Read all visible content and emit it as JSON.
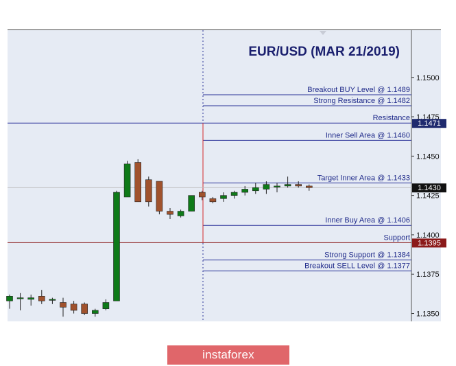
{
  "chart_data": {
    "type": "candlestick",
    "title": "EUR/USD (MAR 21/2019)",
    "ylim": [
      1.1345,
      1.153
    ],
    "y_ticks": [
      "1.1500",
      "1.1475",
      "1.1450",
      "1.1425",
      "1.1400",
      "1.1375",
      "1.1350"
    ],
    "current_price_label": "1.1430",
    "candles": [
      {
        "open": 1.1358,
        "high": 1.1362,
        "low": 1.1353,
        "close": 1.1361
      },
      {
        "open": 1.136,
        "high": 1.1363,
        "low": 1.1352,
        "close": 1.136
      },
      {
        "open": 1.1359,
        "high": 1.1362,
        "low": 1.1355,
        "close": 1.136
      },
      {
        "open": 1.1361,
        "high": 1.1365,
        "low": 1.1356,
        "close": 1.1358
      },
      {
        "open": 1.1359,
        "high": 1.136,
        "low": 1.1356,
        "close": 1.1359
      },
      {
        "open": 1.1357,
        "high": 1.136,
        "low": 1.1348,
        "close": 1.1354
      },
      {
        "open": 1.1356,
        "high": 1.1358,
        "low": 1.135,
        "close": 1.1352
      },
      {
        "open": 1.1356,
        "high": 1.1357,
        "low": 1.1349,
        "close": 1.135
      },
      {
        "open": 1.135,
        "high": 1.1353,
        "low": 1.1348,
        "close": 1.1352
      },
      {
        "open": 1.1353,
        "high": 1.1359,
        "low": 1.1352,
        "close": 1.1357
      },
      {
        "open": 1.1358,
        "high": 1.1428,
        "low": 1.1358,
        "close": 1.1427
      },
      {
        "open": 1.1424,
        "high": 1.1447,
        "low": 1.1424,
        "close": 1.1445
      },
      {
        "open": 1.1446,
        "high": 1.1448,
        "low": 1.1421,
        "close": 1.1421
      },
      {
        "open": 1.1435,
        "high": 1.1437,
        "low": 1.1418,
        "close": 1.1421
      },
      {
        "open": 1.1434,
        "high": 1.1434,
        "low": 1.1413,
        "close": 1.1415
      },
      {
        "open": 1.1415,
        "high": 1.1417,
        "low": 1.141,
        "close": 1.1413
      },
      {
        "open": 1.1412,
        "high": 1.1416,
        "low": 1.1411,
        "close": 1.1415
      },
      {
        "open": 1.1415,
        "high": 1.1425,
        "low": 1.1415,
        "close": 1.1425
      },
      {
        "open": 1.1427,
        "high": 1.1428,
        "low": 1.1422,
        "close": 1.1424
      },
      {
        "open": 1.1423,
        "high": 1.1424,
        "low": 1.142,
        "close": 1.1421
      },
      {
        "open": 1.1423,
        "high": 1.1427,
        "low": 1.1421,
        "close": 1.1425
      },
      {
        "open": 1.1425,
        "high": 1.1428,
        "low": 1.1423,
        "close": 1.1427
      },
      {
        "open": 1.1427,
        "high": 1.1431,
        "low": 1.1425,
        "close": 1.1429
      },
      {
        "open": 1.1428,
        "high": 1.1433,
        "low": 1.1426,
        "close": 1.143
      },
      {
        "open": 1.1429,
        "high": 1.1434,
        "low": 1.1426,
        "close": 1.1432
      },
      {
        "open": 1.1431,
        "high": 1.1433,
        "low": 1.1427,
        "close": 1.1431
      },
      {
        "open": 1.1431,
        "high": 1.1437,
        "low": 1.143,
        "close": 1.1432
      },
      {
        "open": 1.1432,
        "high": 1.1434,
        "low": 1.143,
        "close": 1.1431
      },
      {
        "open": 1.1431,
        "high": 1.1432,
        "low": 1.1428,
        "close": 1.143
      }
    ],
    "levels": [
      {
        "label": "Breakout BUY Level @ 1.1489",
        "value": 1.1489,
        "color": "#2b3399",
        "start": "vline"
      },
      {
        "label": "Strong Resistance @  1.1482",
        "value": 1.1482,
        "color": "#2b3399",
        "start": "vline"
      },
      {
        "label": "Resistance",
        "value": 1.1471,
        "color": "#2b3399",
        "start": "left",
        "price_label": "1.1471",
        "price_label_bg": "#1f2a6e"
      },
      {
        "label": "Inner Sell Area @ 1.1460",
        "value": 1.146,
        "color": "#2b3399",
        "start": "vline"
      },
      {
        "label": "Target Inner Area @ 1.1433",
        "value": 1.1433,
        "color": "#2b3399",
        "start": "vline"
      },
      {
        "label": "Inner Buy Area  @ 1.1406",
        "value": 1.1406,
        "color": "#2b3399",
        "start": "vline"
      },
      {
        "label": "Support",
        "value": 1.1395,
        "color": "#8b1a1a",
        "start": "left",
        "price_label": "1.1395",
        "price_label_bg": "#8b1a1a"
      },
      {
        "label": "Strong Support  @  1.1384",
        "value": 1.1384,
        "color": "#2b3399",
        "start": "vline"
      },
      {
        "label": "Breakout SELL Level  @ 1.1377",
        "value": 1.1377,
        "color": "#2b3399",
        "start": "vline"
      }
    ],
    "colors": {
      "background": "#e6ebf4",
      "bull_candle": "#0e7a18",
      "bear_candle": "#a0522d",
      "grid": "#a0a0a0",
      "vline": "#2b3399",
      "red_segment": "#d42a2a",
      "title": "#1a1f6e"
    },
    "grid": false
  },
  "brand": {
    "logo_text": "instaforex",
    "logo_color": "#e0666a"
  }
}
